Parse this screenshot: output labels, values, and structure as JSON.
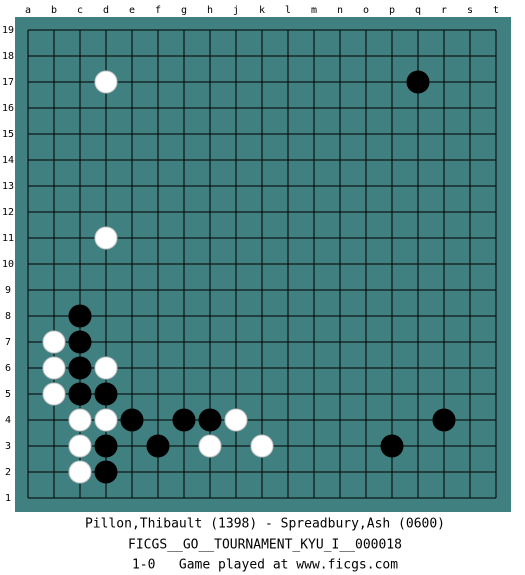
{
  "board": {
    "columns": [
      "a",
      "b",
      "c",
      "d",
      "e",
      "f",
      "g",
      "h",
      "j",
      "k",
      "l",
      "m",
      "n",
      "o",
      "p",
      "q",
      "r",
      "s",
      "t"
    ],
    "rows": [
      19,
      18,
      17,
      16,
      15,
      14,
      13,
      12,
      11,
      10,
      9,
      8,
      7,
      6,
      5,
      4,
      3,
      2,
      1
    ],
    "stones": [
      {
        "color": "white",
        "col": "d",
        "row": 17
      },
      {
        "color": "black",
        "col": "q",
        "row": 17
      },
      {
        "color": "white",
        "col": "d",
        "row": 11
      },
      {
        "color": "black",
        "col": "c",
        "row": 8
      },
      {
        "color": "white",
        "col": "b",
        "row": 7
      },
      {
        "color": "black",
        "col": "c",
        "row": 7
      },
      {
        "color": "white",
        "col": "b",
        "row": 6
      },
      {
        "color": "black",
        "col": "c",
        "row": 6
      },
      {
        "color": "white",
        "col": "d",
        "row": 6
      },
      {
        "color": "white",
        "col": "b",
        "row": 5
      },
      {
        "color": "black",
        "col": "c",
        "row": 5
      },
      {
        "color": "black",
        "col": "d",
        "row": 5
      },
      {
        "color": "white",
        "col": "c",
        "row": 4
      },
      {
        "color": "white",
        "col": "d",
        "row": 4
      },
      {
        "color": "black",
        "col": "e",
        "row": 4
      },
      {
        "color": "black",
        "col": "g",
        "row": 4
      },
      {
        "color": "black",
        "col": "h",
        "row": 4
      },
      {
        "color": "white",
        "col": "j",
        "row": 4
      },
      {
        "color": "black",
        "col": "r",
        "row": 4
      },
      {
        "color": "white",
        "col": "c",
        "row": 3
      },
      {
        "color": "black",
        "col": "d",
        "row": 3
      },
      {
        "color": "black",
        "col": "f",
        "row": 3
      },
      {
        "color": "white",
        "col": "h",
        "row": 3
      },
      {
        "color": "white",
        "col": "k",
        "row": 3
      },
      {
        "color": "black",
        "col": "p",
        "row": 3
      },
      {
        "color": "white",
        "col": "c",
        "row": 2
      },
      {
        "color": "black",
        "col": "d",
        "row": 2
      }
    ]
  },
  "footer": {
    "players": "Pillon,Thibault (1398) - Spreadbury,Ash (0600)",
    "event": "FICGS__GO__TOURNAMENT_KYU_I__000018",
    "result": "1-0   Game played at www.ficgs.com"
  }
}
